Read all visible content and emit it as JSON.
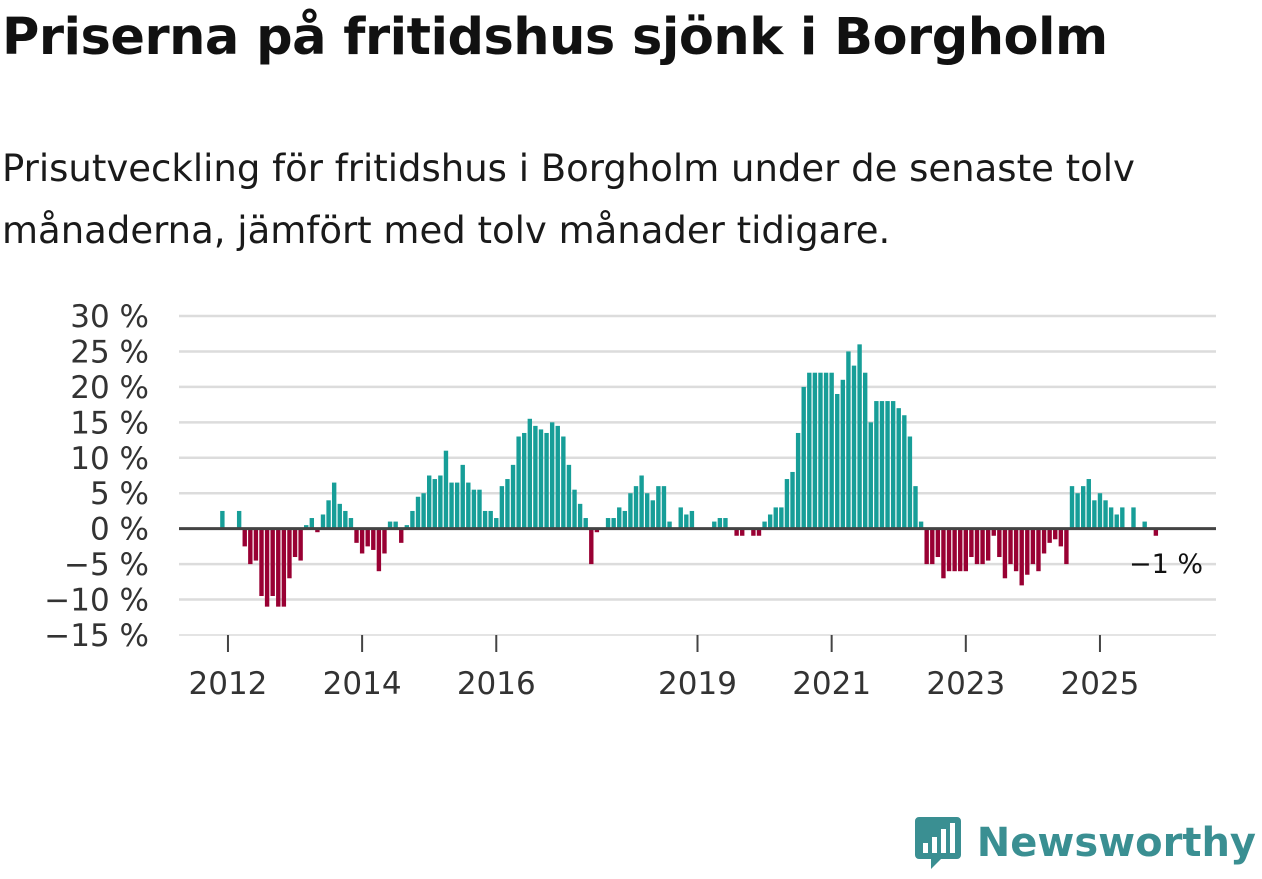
{
  "title": "Priserna på fritidshus sjönk i Borgholm",
  "subtitle": "Prisutveckling för fritidshus i Borgholm under de senaste tolv månaderna, jämfört med tolv månader tidigare.",
  "brand": "Newsworthy",
  "colors": {
    "positive": "#179e98",
    "negative": "#990033",
    "grid": "#dcdcdc",
    "zero": "#444444"
  },
  "chart_data": {
    "type": "bar",
    "ylim": [
      -15,
      30
    ],
    "yticks": [
      30,
      25,
      20,
      15,
      10,
      5,
      0,
      -5,
      -10,
      -15
    ],
    "ytick_labels": [
      "30 %",
      "25 %",
      "20 %",
      "15 %",
      "10 %",
      "5 %",
      "0 %",
      "−5 %",
      "−10 %",
      "−15 %"
    ],
    "xticks": [
      {
        "label": "2012",
        "year": 2012
      },
      {
        "label": "2014",
        "year": 2014
      },
      {
        "label": "2016",
        "year": 2016
      },
      {
        "label": "2019",
        "year": 2019
      },
      {
        "label": "2021",
        "year": 2021
      },
      {
        "label": "2023",
        "year": 2023
      },
      {
        "label": "2025",
        "year": 2025
      }
    ],
    "x_range_years": [
      2011.27,
      2026.73
    ],
    "start": "2011-11",
    "end_label": "−1 %",
    "values": [
      0,
      2.5,
      0,
      0,
      2.5,
      -2.5,
      -5,
      -4.5,
      -9.5,
      -11,
      -9.5,
      -11,
      -11,
      -7,
      -4,
      -4.5,
      0.5,
      1.5,
      -0.5,
      2,
      4,
      6.5,
      3.5,
      2.5,
      1.5,
      -2,
      -3.5,
      -2.5,
      -3,
      -6,
      -3.5,
      1,
      1,
      -2,
      0.5,
      2.5,
      4.5,
      5,
      7.5,
      7,
      7.5,
      11,
      6.5,
      6.5,
      9,
      6.5,
      5.5,
      5.5,
      2.5,
      2.5,
      1.5,
      6,
      7,
      9,
      13,
      13.5,
      15.5,
      14.5,
      14,
      13.5,
      15,
      14.5,
      13,
      9,
      5.5,
      3.5,
      1.5,
      -5,
      -0.5,
      0,
      1.5,
      1.5,
      3,
      2.5,
      5,
      6,
      7.5,
      5,
      4,
      6,
      6,
      1,
      0,
      3,
      2,
      2.5,
      0,
      0,
      0,
      1,
      1.5,
      1.5,
      0,
      -1,
      -1,
      0,
      -1,
      -1,
      1,
      2,
      3,
      3,
      7,
      8,
      13.5,
      20,
      22,
      22,
      22,
      22,
      22,
      19,
      21,
      25,
      23,
      26,
      22,
      15,
      18,
      18,
      18,
      18,
      17,
      16,
      13,
      6,
      1,
      -5,
      -5,
      -4,
      -7,
      -6,
      -6,
      -6,
      -6,
      -4,
      -5,
      -5,
      -4.5,
      -1,
      -4,
      -7,
      -5,
      -6,
      -8,
      -6.5,
      -5,
      -6,
      -3.5,
      -2,
      -1.5,
      -2.5,
      -5,
      6,
      5,
      6,
      7,
      4,
      5,
      4,
      3,
      2,
      3,
      0,
      3,
      0,
      1,
      0,
      -1
    ]
  }
}
